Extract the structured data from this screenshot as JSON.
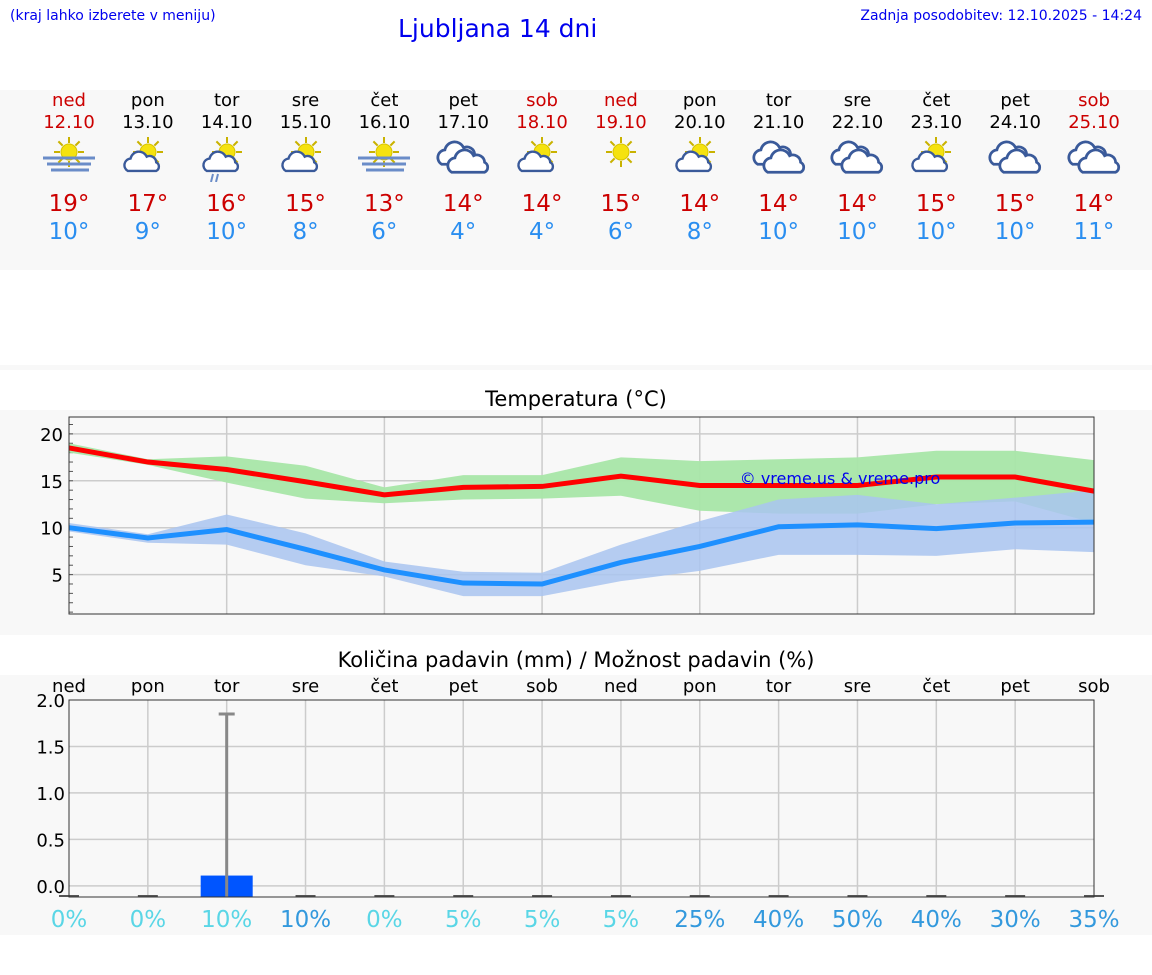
{
  "header": {
    "hint": "(kraj lahko izberete v meniju)",
    "title": "Ljubljana 14 dni",
    "updated": "Zadnja posodobitev: 12.10.2025 - 14:24"
  },
  "colors": {
    "weekend": "#cc0000",
    "weekday": "#000000",
    "max": "#ff0000",
    "min": "#1e90ff",
    "max_band": "#a8e6a8",
    "min_band": "#a9c4f0",
    "precip_bar": "#0055ff",
    "pct_low": "#5ad6e6",
    "pct_high": "#3399dd"
  },
  "days": [
    {
      "name": "ned",
      "date": "12.10",
      "weekend": true,
      "icon": "sun-fog",
      "max": "19°",
      "min": "10°"
    },
    {
      "name": "pon",
      "date": "13.10",
      "weekend": false,
      "icon": "partly-cloudy",
      "max": "17°",
      "min": "9°"
    },
    {
      "name": "tor",
      "date": "14.10",
      "weekend": false,
      "icon": "partly-cloudy-rain",
      "max": "16°",
      "min": "10°"
    },
    {
      "name": "sre",
      "date": "15.10",
      "weekend": false,
      "icon": "partly-cloudy",
      "max": "15°",
      "min": "8°"
    },
    {
      "name": "čet",
      "date": "16.10",
      "weekend": false,
      "icon": "sun-fog",
      "max": "13°",
      "min": "6°"
    },
    {
      "name": "pet",
      "date": "17.10",
      "weekend": false,
      "icon": "cloudy",
      "max": "14°",
      "min": "4°"
    },
    {
      "name": "sob",
      "date": "18.10",
      "weekend": true,
      "icon": "partly-cloudy",
      "max": "14°",
      "min": "4°"
    },
    {
      "name": "ned",
      "date": "19.10",
      "weekend": true,
      "icon": "sun",
      "max": "15°",
      "min": "6°"
    },
    {
      "name": "pon",
      "date": "20.10",
      "weekend": false,
      "icon": "partly-cloudy",
      "max": "14°",
      "min": "8°"
    },
    {
      "name": "tor",
      "date": "21.10",
      "weekend": false,
      "icon": "cloudy",
      "max": "14°",
      "min": "10°"
    },
    {
      "name": "sre",
      "date": "22.10",
      "weekend": false,
      "icon": "cloudy",
      "max": "14°",
      "min": "10°"
    },
    {
      "name": "čet",
      "date": "23.10",
      "weekend": false,
      "icon": "partly-cloudy",
      "max": "15°",
      "min": "10°"
    },
    {
      "name": "pet",
      "date": "24.10",
      "weekend": false,
      "icon": "cloudy",
      "max": "15°",
      "min": "10°"
    },
    {
      "name": "sob",
      "date": "25.10",
      "weekend": true,
      "icon": "cloudy",
      "max": "14°",
      "min": "11°"
    }
  ],
  "chart_data": [
    {
      "type": "line",
      "title": "Temperatura (°C)",
      "watermark": "© vreme.us & vreme.pro",
      "ylim": [
        0.8,
        21.8
      ],
      "yticks": [
        5,
        10,
        15,
        20
      ],
      "grid": true,
      "x": [
        "12.10",
        "13.10",
        "14.10",
        "15.10",
        "16.10",
        "17.10",
        "18.10",
        "19.10",
        "20.10",
        "21.10",
        "22.10",
        "23.10",
        "24.10",
        "25.10"
      ],
      "series": [
        {
          "kind": "max",
          "values": [
            18.5,
            17,
            16.2,
            14.9,
            13.5,
            14.3,
            14.4,
            15.5,
            14.5,
            14.5,
            14.5,
            15.4,
            15.4,
            13.9
          ],
          "band_high": [
            19,
            17.3,
            17.6,
            16.6,
            14.3,
            15.6,
            15.6,
            17.5,
            17.1,
            17.3,
            17.5,
            18.2,
            18.2,
            17.2
          ],
          "band_low": [
            18,
            16.7,
            14.8,
            13.1,
            12.6,
            13,
            13.1,
            13.4,
            11.8,
            11.5,
            11.5,
            12.5,
            12.8,
            10.5
          ]
        },
        {
          "kind": "min",
          "values": [
            10,
            8.9,
            9.8,
            7.7,
            5.5,
            4.1,
            4,
            6.3,
            8,
            10.1,
            10.3,
            9.9,
            10.5,
            10.6
          ],
          "band_high": [
            10.5,
            9.3,
            11.4,
            9.4,
            6.4,
            5.3,
            5.2,
            8.2,
            10.7,
            13,
            13.5,
            12.5,
            13.2,
            14
          ],
          "band_low": [
            9.6,
            8.4,
            8.2,
            6,
            4.8,
            2.7,
            2.7,
            4.3,
            5.4,
            7.1,
            7.1,
            7,
            7.7,
            7.4
          ]
        }
      ]
    },
    {
      "type": "bar",
      "title": "Količina padavin (mm) / Možnost padavin (%)",
      "ylim": [
        -0.12,
        2.0
      ],
      "yticks": [
        "0.0",
        "0.5",
        "1.0",
        "1.5",
        "2.0"
      ],
      "grid": true,
      "categories": [
        "ned",
        "pon",
        "tor",
        "sre",
        "čet",
        "pet",
        "sob",
        "ned",
        "pon",
        "tor",
        "sre",
        "čet",
        "pet",
        "sob"
      ],
      "values": [
        0,
        0,
        0.1,
        0,
        0,
        0,
        0,
        0,
        0,
        0,
        0,
        0,
        0,
        0
      ],
      "error_high": [
        0,
        0,
        1.85,
        0,
        0,
        0,
        0,
        0,
        0,
        0,
        0,
        0,
        0,
        0
      ],
      "probability": [
        "0%",
        "0%",
        "10%",
        "10%",
        "0%",
        "5%",
        "5%",
        "5%",
        "25%",
        "40%",
        "50%",
        "40%",
        "30%",
        "35%"
      ],
      "probability_level": [
        "low",
        "low",
        "low",
        "high",
        "low",
        "low",
        "low",
        "low",
        "high",
        "high",
        "high",
        "high",
        "high",
        "high"
      ]
    }
  ]
}
